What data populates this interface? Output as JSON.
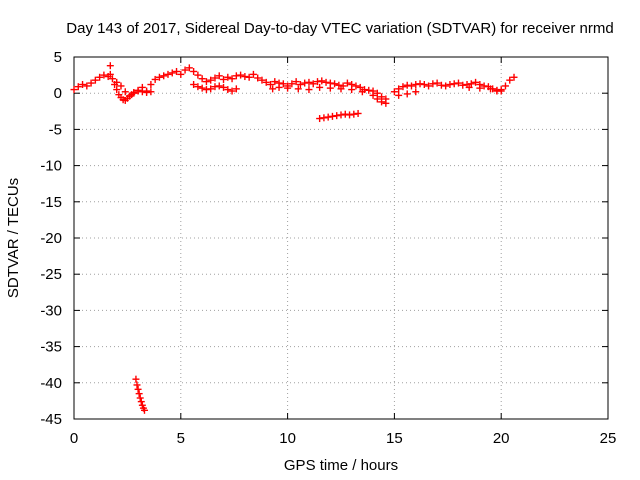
{
  "chart_data": {
    "type": "scatter",
    "title": "Day 143 of 2017, Sidereal Day-to-day VTEC variation (SDTVAR) for receiver nrmd",
    "xlabel": "GPS time / hours",
    "ylabel": "SDTVAR / TECUs",
    "xlim": [
      0,
      25
    ],
    "ylim": [
      -45,
      5
    ],
    "xticks": [
      0,
      5,
      10,
      15,
      20,
      25
    ],
    "yticks": [
      5,
      0,
      -5,
      -10,
      -15,
      -20,
      -25,
      -30,
      -35,
      -40,
      -45
    ],
    "grid": true,
    "marker": "plus",
    "color": "#ff0000",
    "series": [
      {
        "name": "SDTVAR",
        "x": [
          0.0,
          0.2,
          0.4,
          0.6,
          0.8,
          1.0,
          1.2,
          1.4,
          1.6,
          1.7,
          1.8,
          2.0,
          2.2,
          2.4,
          2.6,
          2.8,
          3.0,
          3.2,
          3.4,
          3.6,
          3.8,
          4.0,
          4.2,
          4.4,
          4.6,
          4.8,
          5.0,
          5.2,
          5.4,
          5.6,
          5.8,
          6.0,
          6.2,
          6.4,
          6.6,
          6.8,
          7.0,
          7.2,
          7.4,
          7.6,
          7.8,
          8.0,
          8.2,
          8.4,
          8.6,
          8.8,
          9.0,
          9.2,
          9.4,
          9.6,
          9.8,
          10.0,
          10.2,
          10.4,
          10.6,
          10.8,
          11.0,
          11.2,
          11.4,
          11.6,
          11.8,
          12.0,
          12.2,
          12.4,
          12.6,
          12.8,
          13.0,
          13.2,
          13.4,
          13.6,
          13.8,
          14.0,
          14.2,
          14.4,
          14.6,
          15.0,
          15.2,
          15.4,
          15.6,
          15.8,
          16.0,
          16.2,
          16.4,
          16.6,
          16.8,
          17.0,
          17.2,
          17.4,
          17.6,
          17.8,
          18.0,
          18.2,
          18.4,
          18.6,
          18.8,
          19.0,
          19.2,
          19.4,
          19.6,
          19.8,
          20.0,
          20.2,
          20.4,
          20.6,
          1.9,
          2.0,
          2.1,
          2.2,
          2.3,
          2.4,
          2.5,
          2.6,
          2.7,
          2.8,
          3.0,
          3.2,
          3.4,
          3.6,
          5.6,
          5.8,
          6.0,
          6.2,
          6.4,
          6.6,
          6.8,
          7.0,
          7.2,
          7.4,
          7.6,
          9.3,
          9.6,
          10.0,
          10.5,
          11.0,
          11.5,
          12.0,
          12.5,
          13.0,
          13.5,
          14.0,
          14.2,
          14.4,
          14.6,
          15.2,
          15.6,
          16.0,
          18.5,
          19.0,
          19.5,
          19.8,
          20.0,
          1.7,
          11.5,
          11.7,
          11.9,
          12.1,
          12.3,
          12.5,
          12.7,
          12.9,
          13.1,
          13.3,
          2.9,
          2.95,
          3.0,
          3.05,
          3.1,
          3.15,
          3.2,
          3.25,
          3.3
        ],
        "y": [
          0.5,
          0.9,
          1.2,
          1.0,
          1.4,
          1.8,
          2.2,
          2.5,
          2.3,
          3.8,
          2.0,
          1.5,
          1.0,
          0.2,
          -0.4,
          0.1,
          0.4,
          0.8,
          0.3,
          1.2,
          1.9,
          2.2,
          2.4,
          2.6,
          2.8,
          3.0,
          2.6,
          3.2,
          3.5,
          3.0,
          2.5,
          2.0,
          1.6,
          1.8,
          2.1,
          2.4,
          1.9,
          2.2,
          2.0,
          2.4,
          2.5,
          2.3,
          2.2,
          2.6,
          2.1,
          1.8,
          1.5,
          1.2,
          1.6,
          1.4,
          1.3,
          1.0,
          1.3,
          1.6,
          1.2,
          1.4,
          1.5,
          1.3,
          1.6,
          1.7,
          1.5,
          1.4,
          1.3,
          1.1,
          1.0,
          1.4,
          1.2,
          1.0,
          0.8,
          0.5,
          0.4,
          0.3,
          0.0,
          -0.5,
          -0.8,
          0.2,
          0.6,
          0.9,
          1.1,
          1.0,
          1.2,
          1.3,
          1.2,
          1.0,
          1.3,
          1.4,
          1.1,
          1.0,
          1.2,
          1.3,
          1.4,
          1.1,
          1.2,
          1.3,
          1.5,
          1.2,
          1.0,
          0.9,
          0.6,
          0.3,
          0.5,
          1.0,
          1.8,
          2.2,
          1.2,
          0.5,
          -0.2,
          -0.6,
          -0.9,
          -1.0,
          -0.7,
          -0.4,
          -0.2,
          0.0,
          0.3,
          0.2,
          0.1,
          0.2,
          1.2,
          0.9,
          0.7,
          0.5,
          0.6,
          0.9,
          1.0,
          0.8,
          0.5,
          0.3,
          0.6,
          0.6,
          0.8,
          0.7,
          0.6,
          0.5,
          0.8,
          0.7,
          0.6,
          0.5,
          0.2,
          -0.3,
          -0.8,
          -1.2,
          -1.4,
          -0.3,
          -0.1,
          0.2,
          0.8,
          0.7,
          0.6,
          0.4,
          0.3,
          2.6,
          -3.5,
          -3.4,
          -3.3,
          -3.2,
          -3.1,
          -3.0,
          -2.9,
          -3.0,
          -2.9,
          -2.8,
          -39.5,
          -40.3,
          -40.9,
          -41.5,
          -42.1,
          -42.6,
          -43.1,
          -43.5,
          -43.8
        ]
      }
    ]
  }
}
